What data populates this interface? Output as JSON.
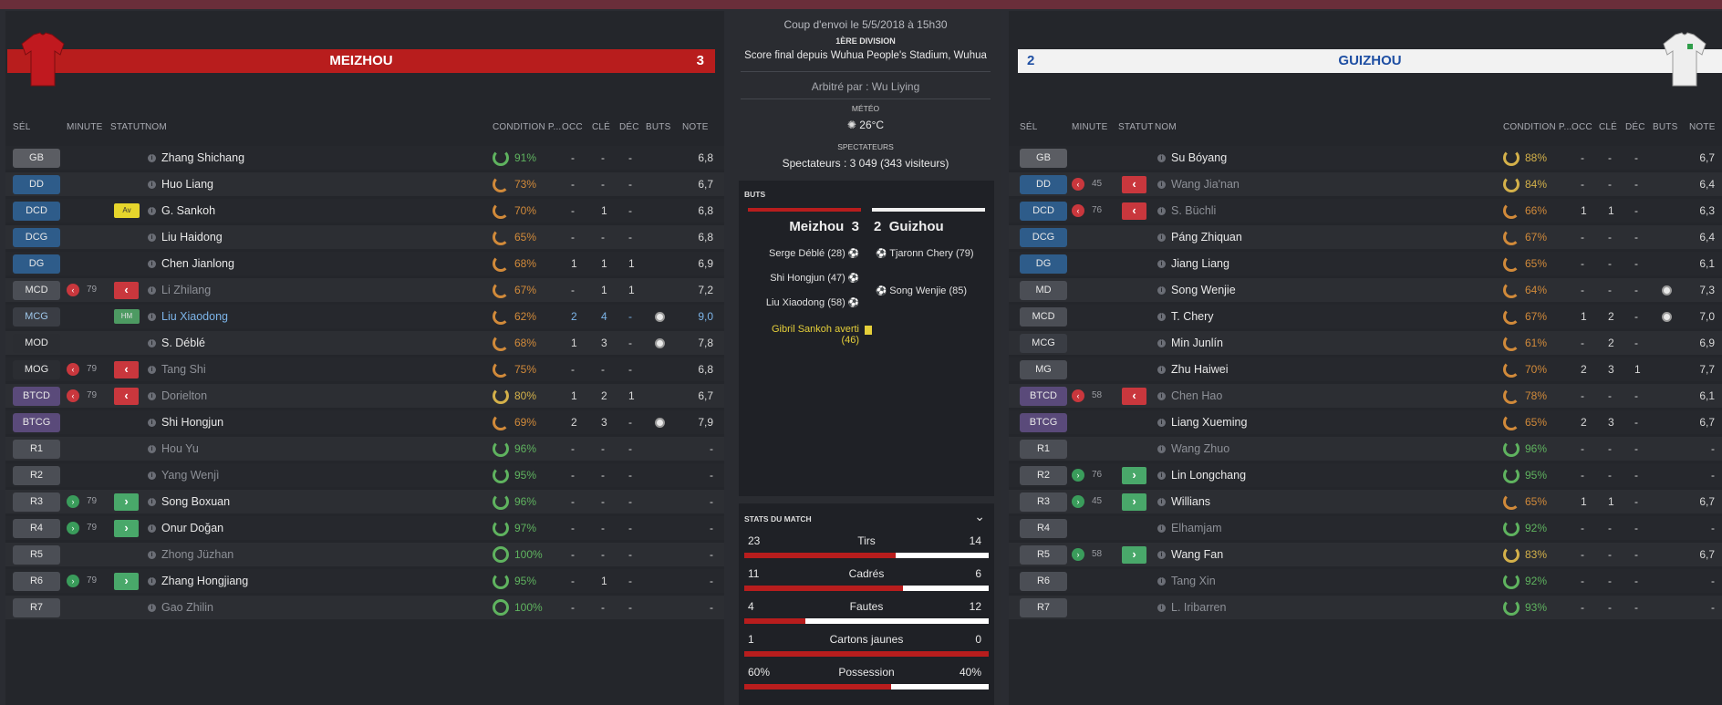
{
  "header": {
    "kickoff": "Coup d'envoi le 5/5/2018 à 15h30",
    "division": "1ÈRE DIVISION",
    "final": "Score final depuis Wuhua People's Stadium, Wuhua",
    "referee": "Arbitré par : Wu Liying",
    "weather_label": "MÉTÉO",
    "temp": "26°C",
    "spect_label": "SPECTATEURS",
    "spectators": "Spectateurs : 3 049 (343 visiteurs)"
  },
  "home": {
    "name": "MEIZHOU",
    "score": "3",
    "shirt_color": "#c0191f"
  },
  "away": {
    "name": "GUIZHOU",
    "score": "2",
    "shirt_color": "#eeeeee"
  },
  "columns": {
    "sel": "SÉL",
    "minute": "MINUTE",
    "statut": "STATUT",
    "nom": "NOM",
    "cond": "CONDITION P...",
    "occ": "OCC",
    "cle": "CLÉ",
    "dec": "DÉC",
    "buts": "BUTS",
    "note": "NOTE"
  },
  "home_players": [
    {
      "pos": "GB",
      "name": "Zhang Shichang",
      "cond": "91%",
      "occ": "-",
      "cle": "-",
      "dec": "-",
      "note": "6,8"
    },
    {
      "pos": "DD",
      "name": "Huo Liang",
      "cond": "73%",
      "occ": "-",
      "cle": "-",
      "dec": "-",
      "note": "6,7"
    },
    {
      "pos": "DCD",
      "name": "G. Sankoh",
      "cond": "70%",
      "occ": "-",
      "cle": "1",
      "dec": "-",
      "note": "6,8",
      "badge": "Av"
    },
    {
      "pos": "DCG",
      "name": "Liu Haidong",
      "cond": "65%",
      "occ": "-",
      "cle": "-",
      "dec": "-",
      "note": "6,8"
    },
    {
      "pos": "DG",
      "name": "Chen Jianlong",
      "cond": "68%",
      "occ": "1",
      "cle": "1",
      "dec": "1",
      "note": "6,9"
    },
    {
      "pos": "MCD",
      "name": "Li Zhilang",
      "cond": "67%",
      "occ": "-",
      "cle": "1",
      "dec": "1",
      "note": "7,2",
      "sub": "out",
      "min": "79"
    },
    {
      "pos": "MCG",
      "name": "Liu Xiaodong",
      "cond": "62%",
      "occ": "2",
      "cle": "4",
      "dec": "-",
      "note": "9,0",
      "badge": "HM",
      "goal": true
    },
    {
      "pos": "MOD",
      "name": "S. Déblé",
      "cond": "68%",
      "occ": "1",
      "cle": "3",
      "dec": "-",
      "note": "7,8",
      "goal": true
    },
    {
      "pos": "MOG",
      "name": "Tang Shi",
      "cond": "75%",
      "occ": "-",
      "cle": "-",
      "dec": "-",
      "note": "6,8",
      "sub": "out",
      "min": "79"
    },
    {
      "pos": "BTCD",
      "name": "Dorielton",
      "cond": "80%",
      "occ": "1",
      "cle": "2",
      "dec": "1",
      "note": "6,7",
      "sub": "out",
      "min": "79"
    },
    {
      "pos": "BTCG",
      "name": "Shi Hongjun",
      "cond": "69%",
      "occ": "2",
      "cle": "3",
      "dec": "-",
      "note": "7,9",
      "goal": true
    },
    {
      "pos": "R1",
      "name": "Hou Yu",
      "cond": "96%",
      "occ": "-",
      "cle": "-",
      "dec": "-",
      "note": "-"
    },
    {
      "pos": "R2",
      "name": "Yang Wenjì",
      "cond": "95%",
      "occ": "-",
      "cle": "-",
      "dec": "-",
      "note": "-"
    },
    {
      "pos": "R3",
      "name": "Song Boxuan",
      "cond": "96%",
      "occ": "-",
      "cle": "-",
      "dec": "-",
      "note": "-",
      "sub": "in",
      "min": "79"
    },
    {
      "pos": "R4",
      "name": "Onur Doğan",
      "cond": "97%",
      "occ": "-",
      "cle": "-",
      "dec": "-",
      "note": "-",
      "sub": "in",
      "min": "79"
    },
    {
      "pos": "R5",
      "name": "Zhong Jüzhan",
      "cond": "100%",
      "occ": "-",
      "cle": "-",
      "dec": "-",
      "note": "-"
    },
    {
      "pos": "R6",
      "name": "Zhang Hongjiang",
      "cond": "95%",
      "occ": "-",
      "cle": "1",
      "dec": "-",
      "note": "-",
      "sub": "in",
      "min": "79"
    },
    {
      "pos": "R7",
      "name": "Gao Zhilin",
      "cond": "100%",
      "occ": "-",
      "cle": "-",
      "dec": "-",
      "note": "-"
    }
  ],
  "away_players": [
    {
      "pos": "GB",
      "name": "Su Bóyang",
      "cond": "88%",
      "occ": "-",
      "cle": "-",
      "dec": "-",
      "note": "6,7"
    },
    {
      "pos": "DD",
      "name": "Wang Jia'nan",
      "cond": "84%",
      "occ": "-",
      "cle": "-",
      "dec": "-",
      "note": "6,4",
      "sub": "out",
      "min": "45"
    },
    {
      "pos": "DCD",
      "name": "S. Büchli",
      "cond": "66%",
      "occ": "1",
      "cle": "1",
      "dec": "-",
      "note": "6,3",
      "sub": "out",
      "min": "76"
    },
    {
      "pos": "DCG",
      "name": "Páng Zhiquan",
      "cond": "67%",
      "occ": "-",
      "cle": "-",
      "dec": "-",
      "note": "6,4"
    },
    {
      "pos": "DG",
      "name": "Jiang Liang",
      "cond": "65%",
      "occ": "-",
      "cle": "-",
      "dec": "-",
      "note": "6,1"
    },
    {
      "pos": "MD",
      "name": "Song Wenjie",
      "cond": "64%",
      "occ": "-",
      "cle": "-",
      "dec": "-",
      "note": "7,3",
      "goal": true
    },
    {
      "pos": "MCD",
      "name": "T. Chery",
      "cond": "67%",
      "occ": "1",
      "cle": "2",
      "dec": "-",
      "note": "7,0",
      "goal": true
    },
    {
      "pos": "MCG",
      "name": "Min Junlín",
      "cond": "61%",
      "occ": "-",
      "cle": "2",
      "dec": "-",
      "note": "6,9"
    },
    {
      "pos": "MG",
      "name": "Zhu Haiwei",
      "cond": "70%",
      "occ": "2",
      "cle": "3",
      "dec": "1",
      "note": "7,7"
    },
    {
      "pos": "BTCD",
      "name": "Chen Hao",
      "cond": "78%",
      "occ": "-",
      "cle": "-",
      "dec": "-",
      "note": "6,1",
      "sub": "out",
      "min": "58"
    },
    {
      "pos": "BTCG",
      "name": "Liang Xueming",
      "cond": "65%",
      "occ": "2",
      "cle": "3",
      "dec": "-",
      "note": "6,7"
    },
    {
      "pos": "R1",
      "name": "Wang Zhuo",
      "cond": "96%",
      "occ": "-",
      "cle": "-",
      "dec": "-",
      "note": "-"
    },
    {
      "pos": "R2",
      "name": "Lin Longchang",
      "cond": "95%",
      "occ": "-",
      "cle": "-",
      "dec": "-",
      "note": "-",
      "sub": "in",
      "min": "76"
    },
    {
      "pos": "R3",
      "name": "Willians",
      "cond": "65%",
      "occ": "1",
      "cle": "1",
      "dec": "-",
      "note": "6,7",
      "sub": "in",
      "min": "45"
    },
    {
      "pos": "R4",
      "name": "Elhamjam",
      "cond": "92%",
      "occ": "-",
      "cle": "-",
      "dec": "-",
      "note": "-"
    },
    {
      "pos": "R5",
      "name": "Wang Fan",
      "cond": "83%",
      "occ": "-",
      "cle": "-",
      "dec": "-",
      "note": "6,7",
      "sub": "in",
      "min": "58"
    },
    {
      "pos": "R6",
      "name": "Tang Xin",
      "cond": "92%",
      "occ": "-",
      "cle": "-",
      "dec": "-",
      "note": "-"
    },
    {
      "pos": "R7",
      "name": "L. Iribarren",
      "cond": "93%",
      "occ": "-",
      "cle": "-",
      "dec": "-",
      "note": "-"
    }
  ],
  "goals_box": {
    "title": "BUTS",
    "home": "Meizhou",
    "home_score": "3",
    "away_score": "2",
    "away": "Guizhou",
    "home_events": [
      "Serge Déblé (28)",
      "Shi Hongjun (47)",
      "Liu Xiaodong (58)"
    ],
    "booking": "Gibril Sankoh averti (46)",
    "away_events": [
      "Tjaronn Chery (79)",
      "Song Wenjie (85)"
    ]
  },
  "stats": {
    "title": "STATS DU MATCH",
    "rows": [
      {
        "label": "Tirs",
        "home": "23",
        "away": "14",
        "home_frac": 0.62
      },
      {
        "label": "Cadrés",
        "home": "11",
        "away": "6",
        "home_frac": 0.65
      },
      {
        "label": "Fautes",
        "home": "4",
        "away": "12",
        "home_frac": 0.25
      },
      {
        "label": "Cartons jaunes",
        "home": "1",
        "away": "0",
        "home_frac": 1.0
      },
      {
        "label": "Possession",
        "home": "60%",
        "away": "40%",
        "home_frac": 0.6
      }
    ]
  }
}
